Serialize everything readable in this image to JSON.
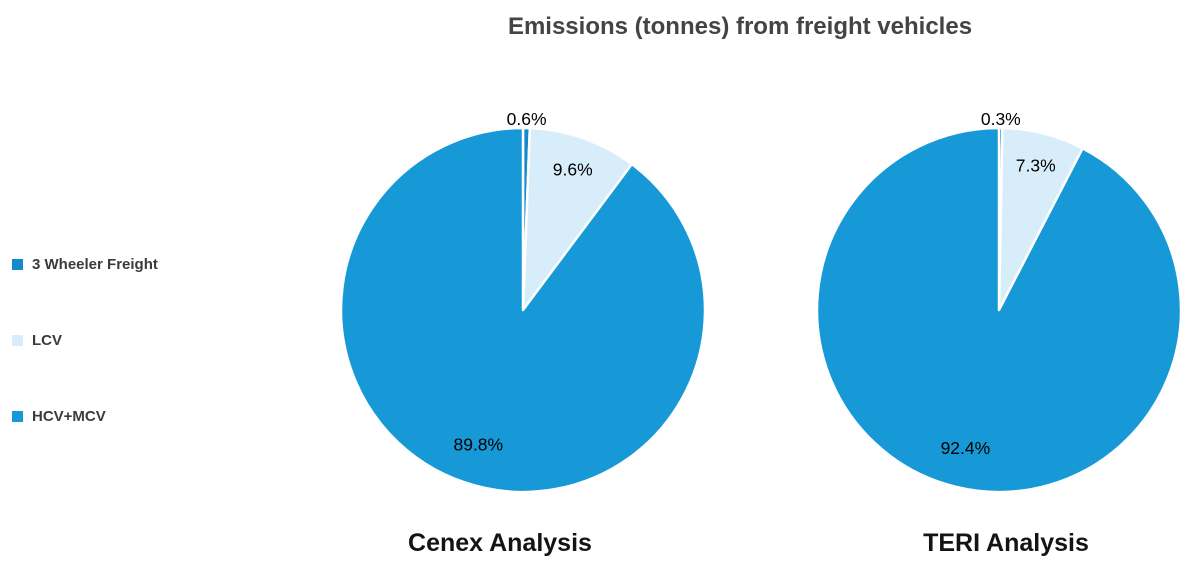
{
  "title": "Emissions (tonnes) from freight vehicles",
  "colors": {
    "three_wheeler": "#1489CB",
    "lcv": "#D7EDF9",
    "hcv_mcv": "#1799D8",
    "title_text": "#444444",
    "legend_text": "#3B3B3B",
    "caption_text": "#141414",
    "data_label_text": "#000000",
    "slice_border": "#FFFFFF",
    "background": "#FFFFFF"
  },
  "legend": {
    "items": [
      {
        "label": "3 Wheeler Freight",
        "color": "#1489CB"
      },
      {
        "label": "LCV",
        "color": "#D7EDF9"
      },
      {
        "label": "HCV+MCV",
        "color": "#1799D8"
      }
    ]
  },
  "chart_data": [
    {
      "type": "pie",
      "name": "Cenex Analysis",
      "categories": [
        "3 Wheeler Freight",
        "LCV",
        "HCV+MCV"
      ],
      "values": [
        0.6,
        9.6,
        89.8
      ],
      "labels": [
        "0.6%",
        "9.6%",
        "89.8%"
      ],
      "colors": [
        "#1489CB",
        "#D7EDF9",
        "#1799D8"
      ],
      "start_angle_deg": 0,
      "direction": "clockwise",
      "legend_position": "left",
      "grid": false
    },
    {
      "type": "pie",
      "name": "TERI Analysis",
      "categories": [
        "3 Wheeler Freight",
        "LCV",
        "HCV+MCV"
      ],
      "values": [
        0.3,
        7.3,
        92.4
      ],
      "labels": [
        "0.3%",
        "7.3%",
        "92.4%"
      ],
      "colors": [
        "#1489CB",
        "#D7EDF9",
        "#1799D8"
      ],
      "start_angle_deg": 0,
      "direction": "clockwise",
      "legend_position": "left",
      "grid": false
    }
  ]
}
